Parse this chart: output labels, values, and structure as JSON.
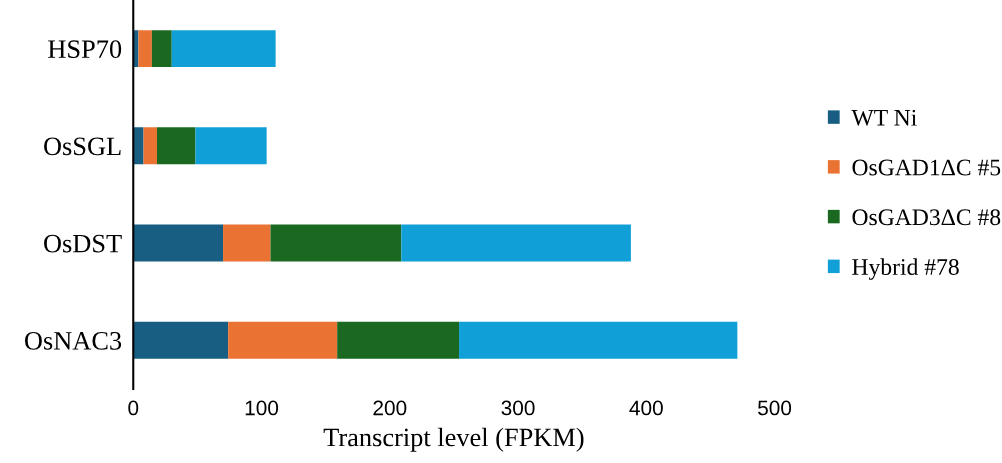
{
  "chart_data": {
    "type": "bar",
    "orientation": "horizontal",
    "stacked": true,
    "xlabel": "Transcript level (FPKM)",
    "categories": [
      "HSP70",
      "OsSGL",
      "OsDST",
      "OsNAC3"
    ],
    "series": [
      {
        "name": "WT Ni",
        "color": "#175e82",
        "values": [
          4,
          8,
          70,
          74
        ]
      },
      {
        "name": "OsGAD1ΔC #5",
        "color": "#ea7334",
        "values": [
          10.5,
          10.5,
          37,
          85
        ]
      },
      {
        "name": "OsGAD3ΔC #8",
        "color": "#1b6921",
        "values": [
          15.5,
          30,
          102,
          95
        ]
      },
      {
        "name": "Hybrid #78",
        "color": "#119fd7",
        "values": [
          81,
          55.5,
          179,
          217
        ]
      }
    ],
    "xlim": [
      0,
      500
    ],
    "xticks": [
      0,
      100,
      200,
      300,
      400,
      500
    ],
    "grid": false,
    "legend": "right"
  }
}
